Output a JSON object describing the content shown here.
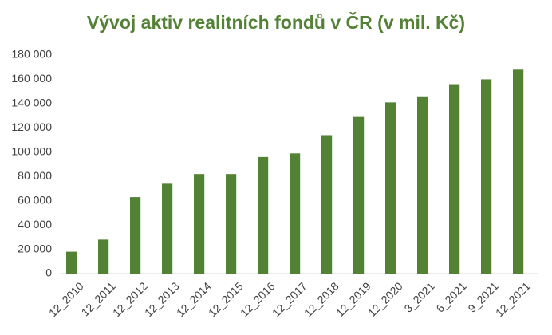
{
  "chart_data": {
    "type": "bar",
    "title": "Vývoj aktiv realitních fondů v ČR (v mil. Kč)",
    "categories": [
      "12_2010",
      "12_2011",
      "12_2012",
      "12_2013",
      "12_2014",
      "12_2015",
      "12_2016",
      "12_2017",
      "12_2018",
      "12_2019",
      "12_2020",
      "3_2021",
      "6_2021",
      "9_2021",
      "12_2021"
    ],
    "values": [
      18000,
      28000,
      63000,
      74000,
      82000,
      82000,
      96000,
      99000,
      114000,
      129000,
      141000,
      146000,
      156000,
      160000,
      168000
    ],
    "color": "#548235",
    "ylim": [
      0,
      180000
    ],
    "yticks": [
      0,
      {
        "value": 20000,
        "label": "20 000"
      },
      {
        "value": 40000,
        "label": "40 000"
      },
      {
        "value": 60000,
        "label": "60 000"
      },
      {
        "value": 80000,
        "label": "80 000"
      },
      {
        "value": 100000,
        "label": "100 000"
      },
      {
        "value": 120000,
        "label": "120 000"
      },
      {
        "value": 140000,
        "label": "140 000"
      },
      {
        "value": 160000,
        "label": "160 000"
      },
      {
        "value": 180000,
        "label": "180 000"
      }
    ],
    "grid": false
  }
}
